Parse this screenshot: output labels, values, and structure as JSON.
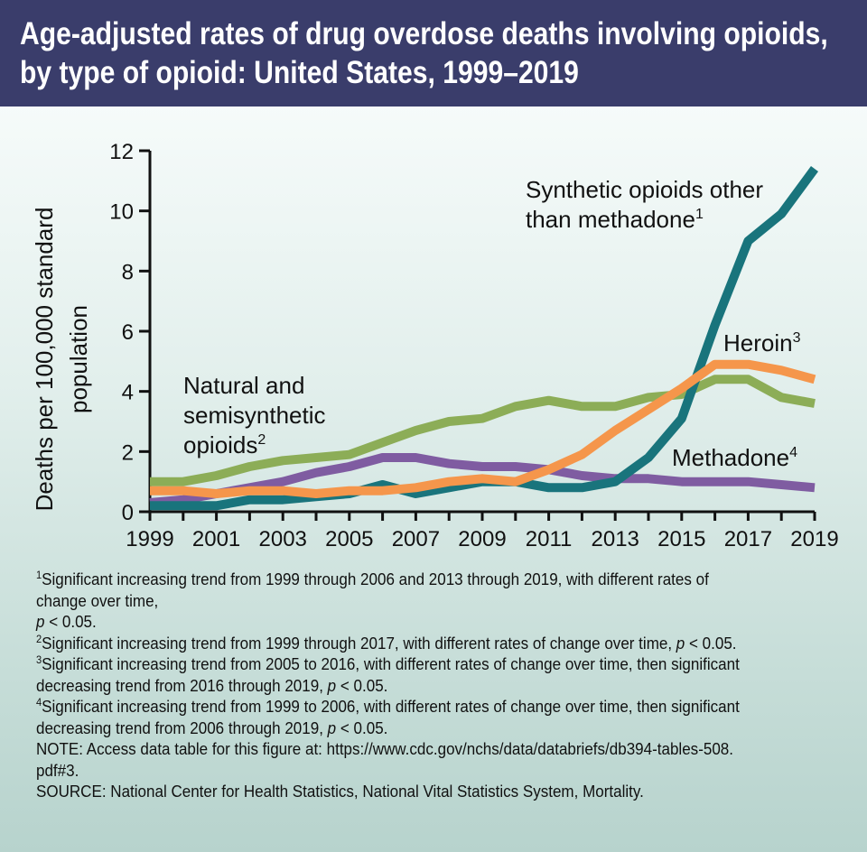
{
  "title_line1": "Age-adjusted rates of drug overdose deaths involving opioids,",
  "title_line2": "by type of opioid: United States, 1999–2019",
  "colors": {
    "header_bg": "#3a3d6b",
    "synthetic": "#19747c",
    "natural": "#8cad57",
    "heroin": "#f5964b",
    "methadone": "#7f5ca1"
  },
  "chart_data": {
    "type": "line",
    "ylabel_line1": "Deaths per 100,000 standard",
    "ylabel_line2": "population",
    "xlabel": "",
    "ylim": [
      0,
      12
    ],
    "yticks": [
      "0",
      "2",
      "4",
      "6",
      "8",
      "10",
      "12"
    ],
    "xtick_labels": [
      "1999",
      "2001",
      "2003",
      "2005",
      "2007",
      "2009",
      "2011",
      "2013",
      "2015",
      "2017",
      "2019"
    ],
    "x": [
      1999,
      2000,
      2001,
      2002,
      2003,
      2004,
      2005,
      2006,
      2007,
      2008,
      2009,
      2010,
      2011,
      2012,
      2013,
      2014,
      2015,
      2016,
      2017,
      2018,
      2019
    ],
    "grid": false,
    "series": [
      {
        "key": "natural",
        "values": [
          1.0,
          1.0,
          1.2,
          1.5,
          1.7,
          1.8,
          1.9,
          2.3,
          2.7,
          3.0,
          3.1,
          3.5,
          3.7,
          3.5,
          3.5,
          3.8,
          3.9,
          4.4,
          4.4,
          3.8,
          3.6
        ]
      },
      {
        "key": "methadone",
        "values": [
          0.3,
          0.4,
          0.6,
          0.8,
          1.0,
          1.3,
          1.5,
          1.8,
          1.8,
          1.6,
          1.5,
          1.5,
          1.4,
          1.2,
          1.1,
          1.1,
          1.0,
          1.0,
          1.0,
          0.9,
          0.8
        ]
      },
      {
        "key": "synthetic",
        "values": [
          0.2,
          0.2,
          0.2,
          0.4,
          0.4,
          0.5,
          0.6,
          0.9,
          0.6,
          0.8,
          1.0,
          1.0,
          0.8,
          0.8,
          1.0,
          1.8,
          3.1,
          6.2,
          9.0,
          9.9,
          11.4
        ]
      },
      {
        "key": "heroin",
        "values": [
          0.7,
          0.7,
          0.6,
          0.7,
          0.7,
          0.6,
          0.7,
          0.7,
          0.8,
          1.0,
          1.1,
          1.0,
          1.4,
          1.9,
          2.7,
          3.4,
          4.1,
          4.9,
          4.9,
          4.7,
          4.4
        ]
      }
    ]
  },
  "labels": {
    "synthetic_line1": "Synthetic opioids other",
    "synthetic_line2": "than methadone",
    "synthetic_sup": "1",
    "heroin": "Heroin",
    "heroin_sup": "3",
    "natural_line1": "Natural and",
    "natural_line2": "semisynthetic",
    "natural_line3": "opioids",
    "natural_sup": "2",
    "methadone": "Methadone",
    "methadone_sup": "4"
  },
  "footnotes": {
    "fn1_sup": "1",
    "fn1_a": "Significant increasing trend from 1999 through 2006 and 2013 through 2019, with different rates of",
    "fn1_b": "change over time,",
    "fn1_p": "p",
    "fn1_c": " < 0.05.",
    "fn2_sup": "2",
    "fn2_a": "Significant increasing trend from 1999 through 2017, with different rates of change over time, ",
    "fn2_p": "p",
    "fn2_c": " < 0.05.",
    "fn3_sup": "3",
    "fn3_a": "Significant increasing trend from 2005 to 2016, with different rates of change over time, then significant",
    "fn3_b": "decreasing trend from 2016 through 2019, ",
    "fn3_p": "p",
    "fn3_c": " < 0.05.",
    "fn4_sup": "4",
    "fn4_a": "Significant increasing trend from 1999 to 2006, with different rates of change over time, then significant",
    "fn4_b": "decreasing trend from 2006 through 2019, ",
    "fn4_p": "p",
    "fn4_c": " < 0.05.",
    "note_a": "NOTE: Access data table for this figure at: https://www.cdc.gov/nchs/data/databriefs/db394-tables-508.",
    "note_b": "pdf#3.",
    "source": "SOURCE: National Center for Health Statistics, National Vital Statistics System, Mortality."
  }
}
